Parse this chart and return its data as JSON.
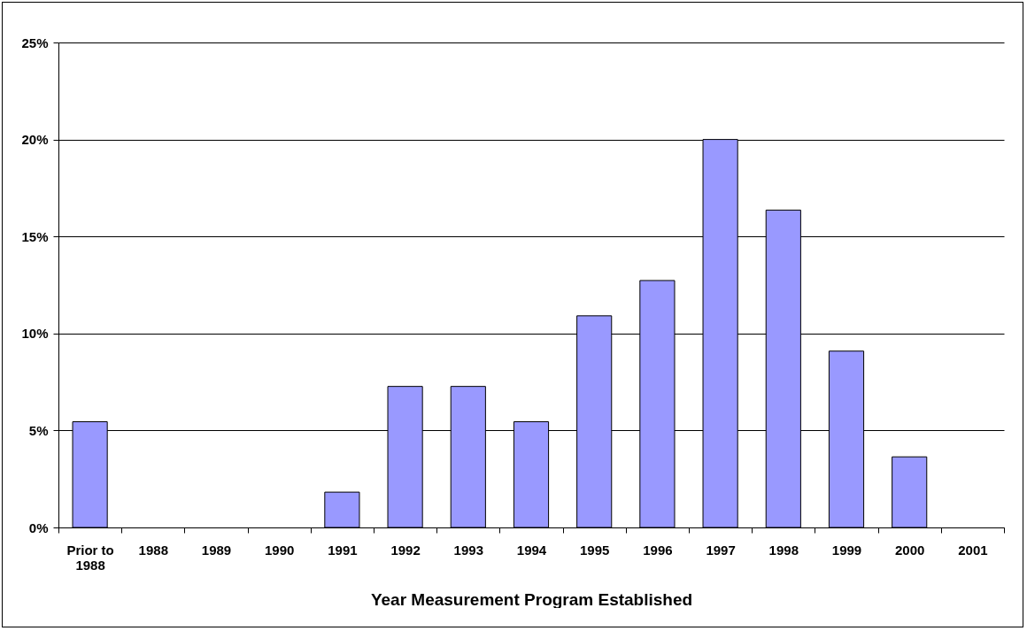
{
  "chart_data": {
    "type": "bar",
    "xlabel": "Year Measurement Program Established",
    "categories": [
      "Prior to 1988",
      "1988",
      "1989",
      "1990",
      "1991",
      "1992",
      "1993",
      "1994",
      "1995",
      "1996",
      "1997",
      "1998",
      "1999",
      "2000",
      "2001"
    ],
    "values": [
      5.45,
      0,
      0,
      0,
      1.82,
      7.27,
      7.27,
      5.45,
      10.91,
      12.73,
      20,
      16.36,
      9.09,
      3.64,
      0
    ],
    "color": "#9999ff",
    "ylim": [
      0,
      25
    ],
    "yticks": [
      {
        "value": 0,
        "label": "0%"
      },
      {
        "value": 5,
        "label": "5%"
      },
      {
        "value": 10,
        "label": "10%"
      },
      {
        "value": 15,
        "label": "15%"
      },
      {
        "value": 20,
        "label": "20%"
      },
      {
        "value": 25,
        "label": "25%"
      }
    ],
    "grid": "y"
  }
}
